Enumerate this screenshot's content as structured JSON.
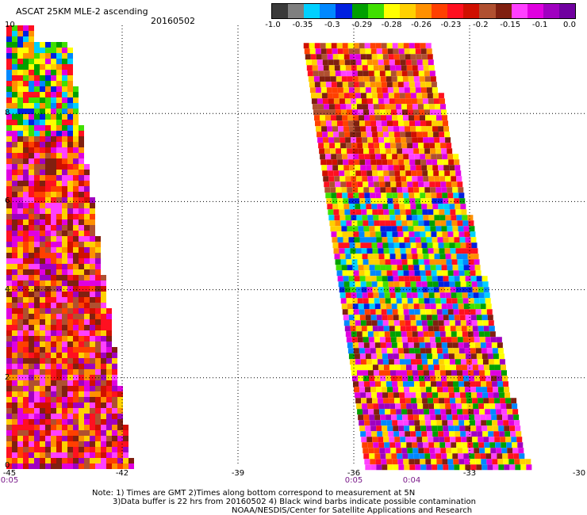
{
  "header": {
    "title": "ASCAT 25KM MLE-2 ascending",
    "date": "20160502"
  },
  "colorbar": {
    "colors": [
      "#3a3a3a",
      "#7f7f7f",
      "#00d0ff",
      "#0088ff",
      "#0020e0",
      "#00a000",
      "#40e000",
      "#ffff00",
      "#ffd000",
      "#ff9000",
      "#ff4000",
      "#ff1020",
      "#d01000",
      "#b05030",
      "#802010",
      "#ff40ff",
      "#e000e0",
      "#a000c0",
      "#7000a0"
    ],
    "labels": [
      "-1.0",
      "-0.35",
      "-0.3",
      "-0.29",
      "-0.28",
      "-0.26",
      "-0.23",
      "-0.2",
      "-0.15",
      "-0.1",
      "0.0"
    ]
  },
  "axes": {
    "y_ticks": [
      "0",
      "2",
      "4",
      "6",
      "8",
      "10"
    ],
    "x_ticks": [
      "-45",
      "-42",
      "-39",
      "-36",
      "-33",
      "-30"
    ]
  },
  "time_labels": [
    {
      "text": "0:05",
      "lon": -45
    },
    {
      "text": "0:05",
      "lon": -36
    },
    {
      "text": "0:04",
      "lon": -34.5
    }
  ],
  "notes": {
    "line1": "Note: 1) Times are GMT 2)Times along bottom correspond to measurement at 5N",
    "line2": "3)Data buffer is 22 hrs from 20160502 4) Black wind barbs indicate possible contamination",
    "line3": "NOAA/NESDIS/Center for Satellite Applications and Research"
  },
  "swaths": {
    "lat_range": [
      0,
      10
    ],
    "lon_range": [
      -45,
      -30
    ],
    "left": {
      "lat_top": 10,
      "west_lon": -45.0,
      "east_lon_top": -43.5,
      "east_lon_bottom": -41.8
    },
    "right": {
      "lat_top": 9.6,
      "west_lon_top": -37.3,
      "west_lon_bottom": -35.7,
      "east_lon_top": -34.1,
      "east_lon_bottom": -31.5
    }
  }
}
